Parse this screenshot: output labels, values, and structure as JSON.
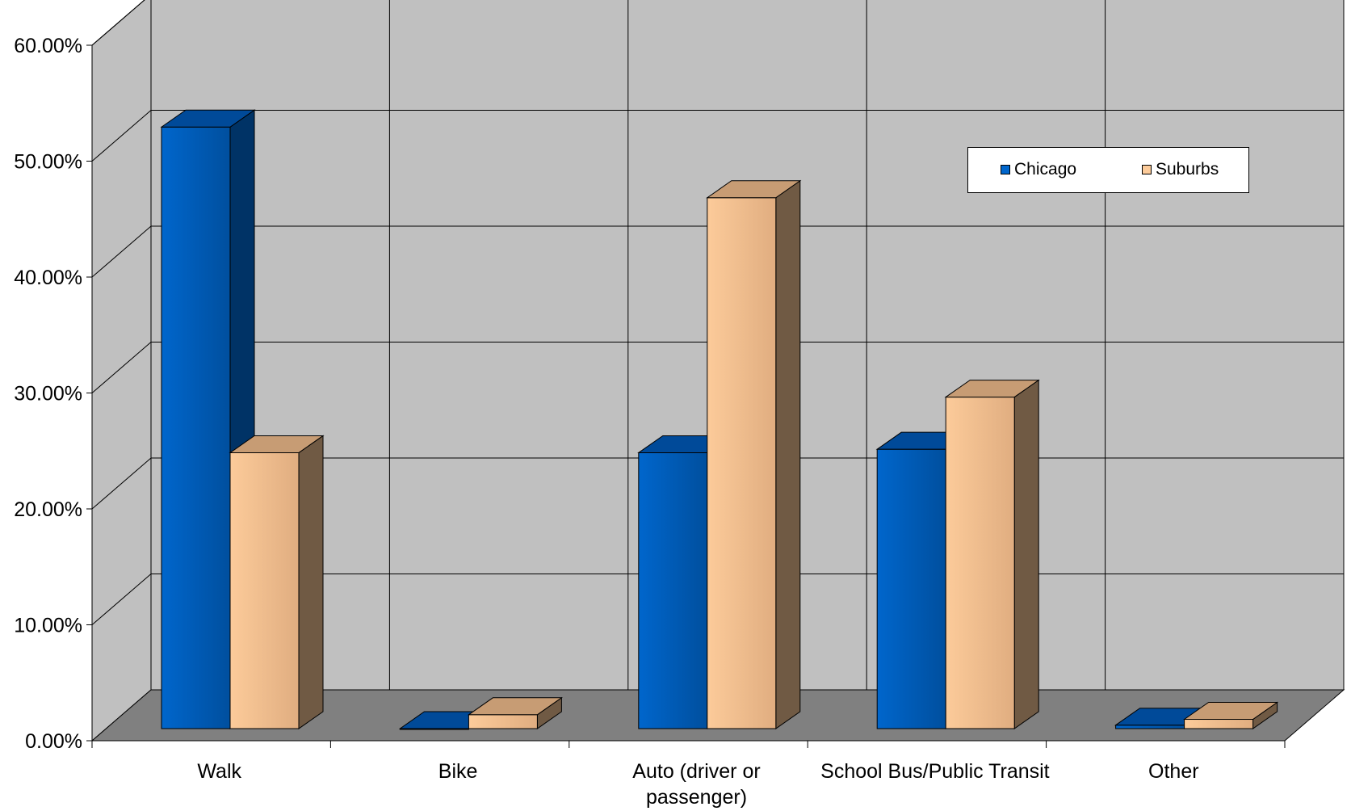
{
  "chart_data": {
    "type": "bar",
    "title": "",
    "xlabel": "",
    "ylabel": "",
    "ylim": [
      0,
      0.6
    ],
    "y_ticks": [
      "0.00%",
      "10.00%",
      "20.00%",
      "30.00%",
      "40.00%",
      "50.00%",
      "60.00%"
    ],
    "categories": [
      [
        "Walk"
      ],
      [
        "Bike"
      ],
      [
        "Auto (driver or",
        "passenger)"
      ],
      [
        "School Bus/Public Transit"
      ],
      [
        "Other"
      ]
    ],
    "series": [
      {
        "name": "Chicago",
        "values": [
          0.519,
          0.0,
          0.238,
          0.241,
          0.003
        ],
        "color": "#0066cc",
        "side_color": "#003366"
      },
      {
        "name": "Suburbs",
        "values": [
          0.238,
          0.012,
          0.458,
          0.286,
          0.008
        ],
        "color": "#fccb9a",
        "side_color": "#705a44"
      }
    ],
    "grid": true,
    "legend_position": "upper-right",
    "style": "3d-clustered-column"
  }
}
